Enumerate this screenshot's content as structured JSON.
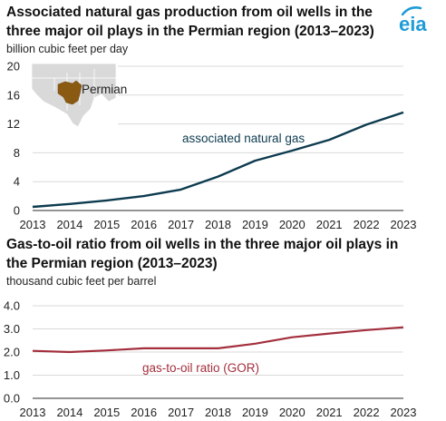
{
  "brand": {
    "logo_text": "eia",
    "accent": "#1f9bd7"
  },
  "chart_data": [
    {
      "type": "line",
      "title": "Associated natural gas production from oil wells in the three major oil plays in the Permian region (2013–2023)",
      "ylabel": "billion cubic feet per day",
      "xlabel": "",
      "x": [
        2013,
        2014,
        2015,
        2016,
        2017,
        2018,
        2019,
        2020,
        2021,
        2022,
        2023
      ],
      "yticks": [
        0,
        4,
        8,
        12,
        16,
        20
      ],
      "ylim": [
        0,
        20
      ],
      "grid": "horizontal",
      "series": [
        {
          "name": "associated natural gas",
          "color": "#0d3b4f",
          "values": [
            0.5,
            0.9,
            1.4,
            2.0,
            2.9,
            4.7,
            6.9,
            8.3,
            9.8,
            11.9,
            13.6
          ]
        }
      ],
      "inset": {
        "label": "Permian",
        "map_color": "#d9d9d9",
        "region_color": "#8b5a12"
      }
    },
    {
      "type": "line",
      "title": "Gas-to-oil ratio from oil wells in the three major oil plays in the Permian region (2013–2023)",
      "ylabel": "thousand cubic feet per barrel",
      "xlabel": "",
      "x": [
        2013,
        2014,
        2015,
        2016,
        2017,
        2018,
        2019,
        2020,
        2021,
        2022,
        2023
      ],
      "yticks": [
        "0.0",
        "1.0",
        "2.0",
        "3.0",
        "4.0"
      ],
      "ylim": [
        0,
        4
      ],
      "grid": "horizontal",
      "series": [
        {
          "name": "gas-to-oil ratio (GOR)",
          "color": "#a32f3d",
          "values": [
            2.05,
            2.0,
            2.07,
            2.16,
            2.16,
            2.16,
            2.36,
            2.64,
            2.8,
            2.95,
            3.07
          ]
        }
      ]
    }
  ]
}
